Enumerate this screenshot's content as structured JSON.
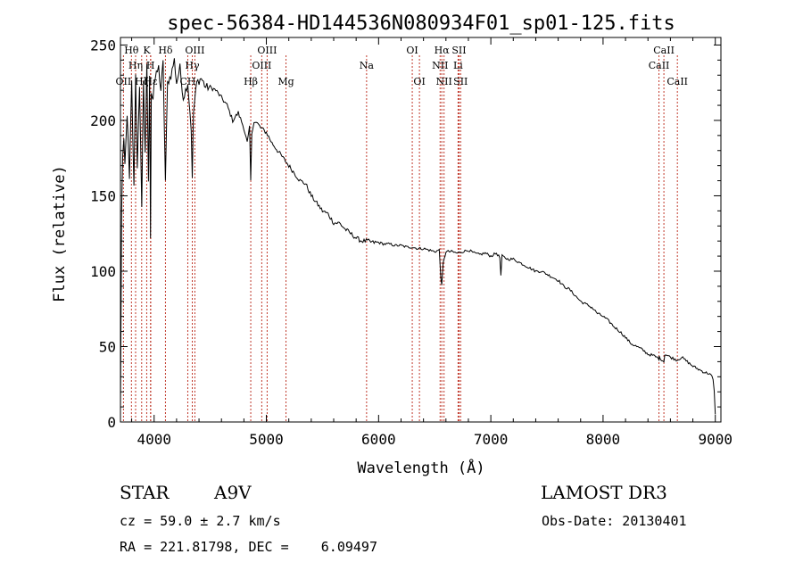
{
  "chart_data": {
    "type": "line",
    "title": "spec-56384-HD144536N080934F01_sp01-125.fits",
    "xlabel": "Wavelength (Å)",
    "ylabel": "Flux (relative)",
    "xlim": [
      3700,
      9050
    ],
    "ylim": [
      0,
      255
    ],
    "xticks": [
      4000,
      5000,
      6000,
      7000,
      8000,
      9000
    ],
    "yticks": [
      0,
      50,
      100,
      150,
      200,
      250
    ],
    "series": [
      {
        "name": "spectrum",
        "x": [
          3700,
          3710,
          3720,
          3730,
          3740,
          3760,
          3780,
          3800,
          3820,
          3835,
          3850,
          3870,
          3890,
          3905,
          3920,
          3935,
          3950,
          3960,
          3968,
          3975,
          3990,
          4000,
          4020,
          4040,
          4060,
          4080,
          4101,
          4120,
          4150,
          4180,
          4200,
          4230,
          4260,
          4300,
          4330,
          4340,
          4350,
          4380,
          4420,
          4460,
          4500,
          4550,
          4600,
          4650,
          4700,
          4750,
          4800,
          4830,
          4850,
          4861,
          4870,
          4890,
          4920,
          4950,
          5000,
          5050,
          5100,
          5150,
          5200,
          5250,
          5300,
          5350,
          5400,
          5450,
          5500,
          5550,
          5600,
          5650,
          5700,
          5750,
          5800,
          5850,
          5900,
          5950,
          6000,
          6050,
          6100,
          6150,
          6200,
          6250,
          6300,
          6350,
          6400,
          6450,
          6500,
          6540,
          6555,
          6563,
          6575,
          6600,
          6650,
          6700,
          6750,
          6800,
          6850,
          6900,
          6950,
          7000,
          7050,
          7080,
          7090,
          7100,
          7150,
          7200,
          7250,
          7300,
          7350,
          7400,
          7450,
          7500,
          7550,
          7600,
          7650,
          7700,
          7750,
          7800,
          7850,
          7900,
          7950,
          8000,
          8050,
          8100,
          8150,
          8200,
          8250,
          8300,
          8350,
          8400,
          8450,
          8498,
          8500,
          8542,
          8550,
          8600,
          8662,
          8700,
          8750,
          8800,
          8850,
          8900,
          8950,
          8970,
          8980,
          8990,
          9000
        ],
        "y": [
          5,
          140,
          175,
          185,
          170,
          205,
          160,
          225,
          155,
          230,
          170,
          220,
          145,
          225,
          180,
          235,
          160,
          230,
          120,
          220,
          215,
          225,
          230,
          235,
          220,
          238,
          160,
          225,
          230,
          240,
          225,
          235,
          215,
          225,
          195,
          160,
          205,
          225,
          228,
          222,
          222,
          220,
          215,
          210,
          200,
          205,
          195,
          185,
          195,
          160,
          190,
          200,
          198,
          195,
          192,
          185,
          180,
          175,
          170,
          165,
          160,
          158,
          150,
          145,
          140,
          138,
          132,
          132,
          128,
          125,
          122,
          120,
          120,
          119,
          119,
          118,
          118,
          117,
          117,
          116,
          116,
          115,
          115,
          114,
          113,
          114,
          96,
          90,
          105,
          113,
          113,
          112,
          113,
          114,
          112,
          111,
          112,
          110,
          112,
          109,
          97,
          110,
          108,
          108,
          106,
          104,
          102,
          100,
          100,
          98,
          96,
          94,
          90,
          88,
          84,
          80,
          78,
          76,
          72,
          70,
          67,
          63,
          60,
          56,
          52,
          50,
          48,
          45,
          44,
          42,
          43,
          40,
          45,
          43,
          41,
          43,
          40,
          37,
          35,
          33,
          32,
          30,
          28,
          20,
          5
        ]
      }
    ],
    "lines": [
      {
        "label": "OII",
        "x": 3727,
        "row": 3
      },
      {
        "label": "Hθ",
        "x": 3798,
        "row": 1
      },
      {
        "label": "Hη",
        "x": 3835,
        "row": 2
      },
      {
        "label": "Hζ",
        "x": 3889,
        "row": 3
      },
      {
        "label": "K",
        "x": 3934,
        "row": 1
      },
      {
        "label": "H",
        "x": 3968,
        "row": 2
      },
      {
        "label": "Hε",
        "x": 3970,
        "row": 3
      },
      {
        "label": "Hδ",
        "x": 4101,
        "row": 1
      },
      {
        "label": "OIII",
        "x": 4363,
        "row": 1
      },
      {
        "label": "Hγ",
        "x": 4340,
        "row": 2
      },
      {
        "label": "CH",
        "x": 4300,
        "row": 3
      },
      {
        "label": "Hβ",
        "x": 4861,
        "row": 4
      },
      {
        "label": "OIII",
        "x": 4959,
        "row": 2
      },
      {
        "label": "OIII",
        "x": 5007,
        "row": 1
      },
      {
        "label": "Mg",
        "x": 5175,
        "row": 4
      },
      {
        "label": "Na",
        "x": 5893,
        "row": 2
      },
      {
        "label": "OI",
        "x": 6300,
        "row": 1
      },
      {
        "label": "OI",
        "x": 6364,
        "row": 3
      },
      {
        "label": "NII",
        "x": 6548,
        "row": 2
      },
      {
        "label": "Hα",
        "x": 6563,
        "row": 1
      },
      {
        "label": "NII",
        "x": 6583,
        "row": 3
      },
      {
        "label": "Li",
        "x": 6708,
        "row": 2
      },
      {
        "label": "SII",
        "x": 6717,
        "row": 1
      },
      {
        "label": "SII",
        "x": 6731,
        "row": 3
      },
      {
        "label": "CaII",
        "x": 8498,
        "row": 2
      },
      {
        "label": "CaII",
        "x": 8542,
        "row": 1
      },
      {
        "label": "CaII",
        "x": 8662,
        "row": 3
      }
    ]
  },
  "info": {
    "object_class": "STAR",
    "subclass": "A9V",
    "survey": "LAMOST DR3",
    "redshift": "cz = 59.0 ± 2.7 km/s",
    "obs_date": "Obs-Date: 20130401",
    "coords": "RA = 221.81798, DEC =    6.09497"
  }
}
